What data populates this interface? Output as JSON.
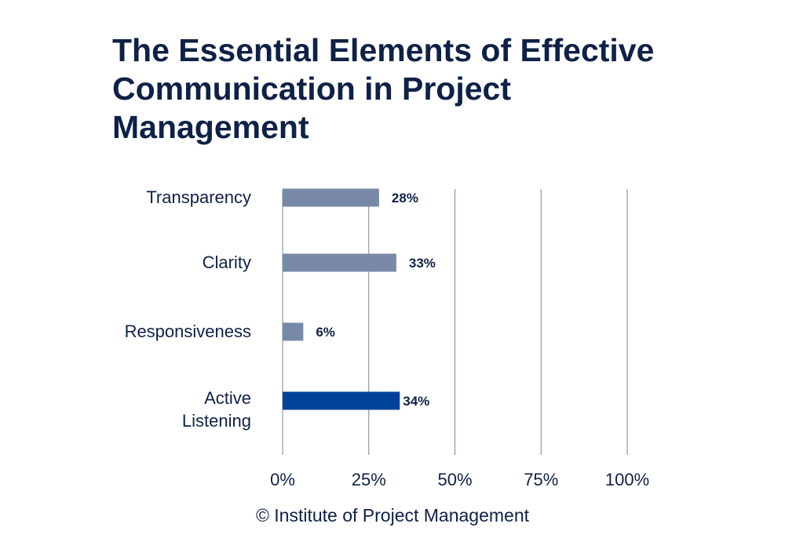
{
  "title": "The Essential Elements of Effective Communication in Project Management",
  "footer": "© Institute of Project Management",
  "colors": {
    "bar": "#7889a7",
    "highlight": "#004299",
    "text": "#0f2147",
    "grid": "#7a8696"
  },
  "chart_data": {
    "type": "bar",
    "orientation": "horizontal",
    "categories": [
      "Transparency",
      "Clarity",
      "Responsiveness",
      "Active Listening"
    ],
    "category_lines": [
      [
        "Transparency"
      ],
      [
        "Clarity"
      ],
      [
        "Responsiveness"
      ],
      [
        "Active",
        "Listening"
      ]
    ],
    "values": [
      28,
      33,
      6,
      34
    ],
    "value_labels": [
      "28%",
      "33%",
      "6%",
      "34%"
    ],
    "highlighted": [
      false,
      false,
      false,
      true
    ],
    "xlim": [
      0,
      100
    ],
    "xticks": [
      0,
      25,
      50,
      75,
      100
    ],
    "xtick_labels": [
      "0%",
      "25%",
      "50%",
      "75%",
      "100%"
    ],
    "grid": true
  }
}
